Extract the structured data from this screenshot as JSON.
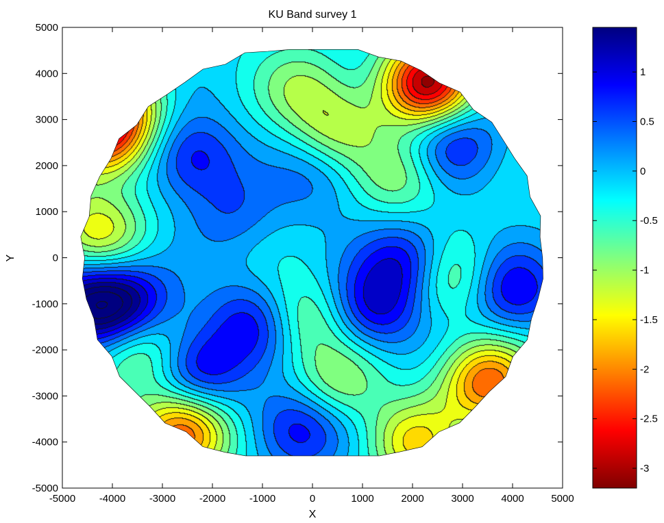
{
  "chart_data": {
    "type": "heatmap",
    "title": "KU Band survey 1",
    "xlabel": "X",
    "ylabel": "Y",
    "xlim": [
      -5000,
      5000
    ],
    "ylim": [
      -5000,
      5000
    ],
    "xticks": [
      -5000,
      -4000,
      -3000,
      -2000,
      -1000,
      0,
      1000,
      2000,
      3000,
      4000,
      5000
    ],
    "yticks": [
      -5000,
      -4000,
      -3000,
      -2000,
      -1000,
      0,
      1000,
      2000,
      3000,
      4000,
      5000
    ],
    "xtick_labels": [
      "-5000",
      "-4000",
      "-3000",
      "-2000",
      "-1000",
      "0",
      "1000",
      "2000",
      "3000",
      "4000",
      "5000"
    ],
    "ytick_labels": [
      "-5000",
      "-4000",
      "-3000",
      "-2000",
      "-1000",
      "0",
      "1000",
      "2000",
      "3000",
      "4000",
      "5000"
    ],
    "grid": false,
    "survey_radius": 4600,
    "colormap": "jet",
    "colorbar": {
      "range": [
        -3.2,
        1.45
      ],
      "ticks": [
        1,
        0.5,
        0,
        -0.5,
        -1,
        -1.5,
        -2,
        -2.5,
        -3
      ],
      "tick_labels": [
        "1",
        "0.5",
        "0",
        "-0.5",
        "-1",
        "-1.5",
        "-2",
        "-2.5",
        "-3"
      ]
    },
    "features": [
      {
        "x": 2300,
        "y": 3800,
        "value": -3.0
      },
      {
        "x": -4200,
        "y": 2700,
        "value": -2.6
      },
      {
        "x": -2600,
        "y": -3800,
        "value": -2.4
      },
      {
        "x": 3500,
        "y": -2700,
        "value": -2.2
      },
      {
        "x": -4300,
        "y": 600,
        "value": -1.4
      },
      {
        "x": -3900,
        "y": 3400,
        "value": -1.3
      },
      {
        "x": -3500,
        "y": -2000,
        "value": -1.2
      },
      {
        "x": 2000,
        "y": -4000,
        "value": -1.5
      },
      {
        "x": 500,
        "y": 2800,
        "value": -1.1
      },
      {
        "x": 1800,
        "y": 1800,
        "value": -1.0
      },
      {
        "x": 2700,
        "y": -400,
        "value": -1.1
      },
      {
        "x": 500,
        "y": -2700,
        "value": -1.0
      },
      {
        "x": -200,
        "y": -1300,
        "value": -1.0
      },
      {
        "x": -200,
        "y": 3700,
        "value": -0.9
      },
      {
        "x": -2400,
        "y": 2200,
        "value": 0.9
      },
      {
        "x": -3700,
        "y": -1000,
        "value": 1.2
      },
      {
        "x": -2300,
        "y": -2400,
        "value": 1.1
      },
      {
        "x": -1200,
        "y": -1400,
        "value": 0.9
      },
      {
        "x": -300,
        "y": -3700,
        "value": 1.0
      },
      {
        "x": 1200,
        "y": -1100,
        "value": 1.0
      },
      {
        "x": 1900,
        "y": -100,
        "value": 1.1
      },
      {
        "x": 2800,
        "y": 2500,
        "value": 0.9
      },
      {
        "x": 4000,
        "y": -700,
        "value": 1.0
      },
      {
        "x": 100,
        "y": 1800,
        "value": 0.4
      },
      {
        "x": -1600,
        "y": 1000,
        "value": 0.4
      },
      {
        "x": -4500,
        "y": -1000,
        "value": 1.4
      }
    ]
  }
}
